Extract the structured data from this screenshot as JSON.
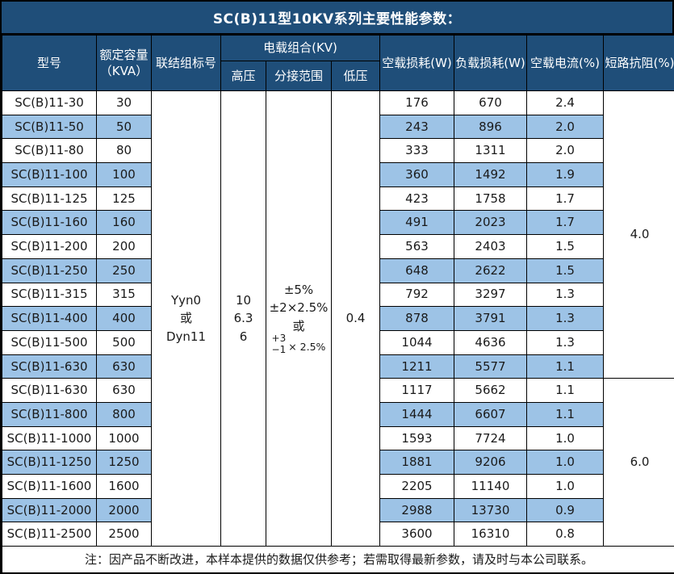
{
  "title": "SC(B)11型10KV系列主要性能参数：",
  "colors": {
    "header_bg": "#1F4E79",
    "stripe_bg": "#9DC3E6",
    "border": "#000000",
    "header_text": "#FFFFFF",
    "body_text": "#1A1A1A"
  },
  "header": {
    "model": "型号",
    "capacity_line1": "额定容量",
    "capacity_line2": "（KVA）",
    "vector_group": "联结组标号",
    "voltage_group": "电载组合(KV)",
    "hv": "高压",
    "tap_range": "分接范围",
    "lv": "低压",
    "no_load_loss": "空载损耗(W)",
    "load_loss": "负载损耗(W)",
    "no_load_current": "空载电流(%)",
    "impedance": "短路抗阻(%)"
  },
  "merged": {
    "vector_group_lines": [
      "Yyn0",
      "或",
      "Dyn11"
    ],
    "hv_lines": [
      "10",
      "6.3",
      "6"
    ],
    "tap_lines": [
      "±5%",
      "±2×2.5%",
      "或"
    ],
    "tap_fraction": {
      "top": "+3",
      "bottom": "−1",
      "suffix": "× 2.5%"
    },
    "lv": "0.4",
    "impedance_groups": [
      {
        "value": "4.0",
        "rows": 12
      },
      {
        "value": "6.0",
        "rows": 7
      }
    ]
  },
  "rows": [
    {
      "model": "SC(B)11-30",
      "kva": "30",
      "no_load": "176",
      "load": "670",
      "current": "2.4"
    },
    {
      "model": "SC(B)11-50",
      "kva": "50",
      "no_load": "243",
      "load": "896",
      "current": "2.0"
    },
    {
      "model": "SC(B)11-80",
      "kva": "80",
      "no_load": "333",
      "load": "1311",
      "current": "2.0"
    },
    {
      "model": "SC(B)11-100",
      "kva": "100",
      "no_load": "360",
      "load": "1492",
      "current": "1.9"
    },
    {
      "model": "SC(B)11-125",
      "kva": "125",
      "no_load": "423",
      "load": "1758",
      "current": "1.7"
    },
    {
      "model": "SC(B)11-160",
      "kva": "160",
      "no_load": "491",
      "load": "2023",
      "current": "1.7"
    },
    {
      "model": "SC(B)11-200",
      "kva": "200",
      "no_load": "563",
      "load": "2403",
      "current": "1.5"
    },
    {
      "model": "SC(B)11-250",
      "kva": "250",
      "no_load": "648",
      "load": "2622",
      "current": "1.5"
    },
    {
      "model": "SC(B)11-315",
      "kva": "315",
      "no_load": "792",
      "load": "3297",
      "current": "1.3"
    },
    {
      "model": "SC(B)11-400",
      "kva": "400",
      "no_load": "878",
      "load": "3791",
      "current": "1.3"
    },
    {
      "model": "SC(B)11-500",
      "kva": "500",
      "no_load": "1044",
      "load": "4636",
      "current": "1.3"
    },
    {
      "model": "SC(B)11-630",
      "kva": "630",
      "no_load": "1211",
      "load": "5577",
      "current": "1.1"
    },
    {
      "model": "SC(B)11-630",
      "kva": "630",
      "no_load": "1117",
      "load": "5662",
      "current": "1.1"
    },
    {
      "model": "SC(B)11-800",
      "kva": "800",
      "no_load": "1444",
      "load": "6607",
      "current": "1.1"
    },
    {
      "model": "SC(B)11-1000",
      "kva": "1000",
      "no_load": "1593",
      "load": "7724",
      "current": "1.0"
    },
    {
      "model": "SC(B)11-1250",
      "kva": "1250",
      "no_load": "1881",
      "load": "9206",
      "current": "1.0"
    },
    {
      "model": "SC(B)11-1600",
      "kva": "1600",
      "no_load": "2205",
      "load": "11140",
      "current": "1.0"
    },
    {
      "model": "SC(B)11-2000",
      "kva": "2000",
      "no_load": "2988",
      "load": "13730",
      "current": "0.9"
    },
    {
      "model": "SC(B)11-2500",
      "kva": "2500",
      "no_load": "3600",
      "load": "16310",
      "current": "0.8"
    }
  ],
  "note": "注：因产品不断改进，本样本提供的数据仅供参考；若需取得最新参数，请及时与本公司联系。"
}
